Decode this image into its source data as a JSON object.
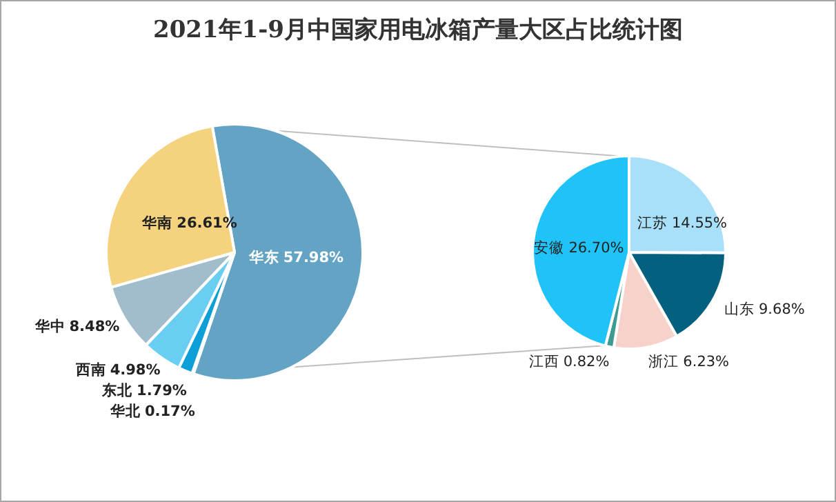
{
  "chart_data": [
    {
      "type": "pie",
      "title": "2021年1-9月中国家用电冰箱产量大区占比统计图",
      "categories": [
        "华东",
        "华北",
        "东北",
        "西南",
        "华中",
        "华南"
      ],
      "values": [
        57.98,
        0.17,
        1.79,
        4.98,
        8.48,
        26.61
      ],
      "colors": [
        "#63a3c4",
        "#1c86c0",
        "#0d9fd8",
        "#6acdf2",
        "#a1bccb",
        "#f5d27d"
      ],
      "value_labels": [
        "57.98%",
        "0.17%",
        "1.79%",
        "4.98%",
        "8.48%",
        "26.61%"
      ]
    },
    {
      "type": "pie",
      "categories": [
        "江苏",
        "山东",
        "浙江",
        "江西",
        "安徽"
      ],
      "values": [
        14.55,
        9.68,
        6.23,
        0.82,
        26.7
      ],
      "colors": [
        "#a7e0f8",
        "#04607f",
        "#f7d2cb",
        "#3f9a92",
        "#1fc3f7"
      ],
      "value_labels": [
        "14.55%",
        "9.68%",
        "6.23%",
        "0.82%",
        "26.70%"
      ]
    }
  ]
}
